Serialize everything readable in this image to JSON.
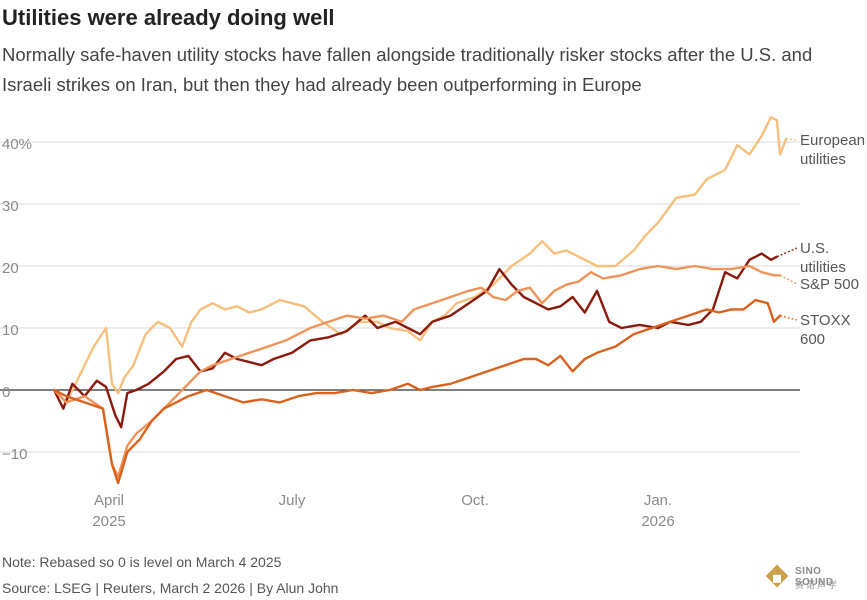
{
  "header": {
    "title": "Utilities were already doing well",
    "subtitle": "Normally safe-haven utility stocks have fallen alongside traditionally risker stocks after the U.S. and Israeli strikes on Iran, but then they had already been outperforming in Europe"
  },
  "footer": {
    "note": "Note: Rebased so 0 is level on March 4 2025",
    "source": "Source: LSEG | Reuters, March 2 2026 | By Alun John"
  },
  "logo": {
    "text": "SINO SOUND",
    "subtext": "赛诺声学"
  },
  "colors": {
    "european_utilities": "#f5c07e",
    "us_utilities": "#8b1a0e",
    "sp500": "#ee935a",
    "stoxx600": "#d9621e",
    "grid": "#d9d9d9",
    "zero_line": "#333333",
    "axis_text": "#8a8a8a"
  },
  "chart_data": {
    "type": "line",
    "title": "Utilities were already doing well",
    "xlabel": "",
    "ylabel": "",
    "x_unit": "months since March 1 2025",
    "xlim": [
      0.05,
      12.25
    ],
    "ylim": [
      -15,
      45
    ],
    "yticks": [
      -10,
      0,
      10,
      20,
      30,
      40
    ],
    "ytick_labels": [
      "−10",
      "0",
      "10",
      "20",
      "30",
      "40%"
    ],
    "xticks": [
      {
        "x": 1,
        "label": "April",
        "year": "2025"
      },
      {
        "x": 4,
        "label": "July",
        "year": ""
      },
      {
        "x": 7,
        "label": "Oct.",
        "year": ""
      },
      {
        "x": 10,
        "label": "Jan.",
        "year": "2026"
      }
    ],
    "series": [
      {
        "name": "European utilities",
        "label_lines": [
          "European",
          "utilities"
        ],
        "color_key": "european_utilities",
        "points": [
          [
            0.1,
            0
          ],
          [
            0.3,
            -2
          ],
          [
            0.55,
            3
          ],
          [
            0.75,
            7
          ],
          [
            0.95,
            10
          ],
          [
            1.05,
            1
          ],
          [
            1.15,
            -0.5
          ],
          [
            1.25,
            2
          ],
          [
            1.4,
            4
          ],
          [
            1.6,
            9
          ],
          [
            1.8,
            11
          ],
          [
            2.0,
            10
          ],
          [
            2.2,
            7
          ],
          [
            2.35,
            11
          ],
          [
            2.5,
            13
          ],
          [
            2.7,
            14
          ],
          [
            2.9,
            13
          ],
          [
            3.1,
            13.5
          ],
          [
            3.3,
            12.5
          ],
          [
            3.5,
            13
          ],
          [
            3.8,
            14.5
          ],
          [
            4.0,
            14
          ],
          [
            4.2,
            13.5
          ],
          [
            4.5,
            11
          ],
          [
            4.8,
            9
          ],
          [
            5.1,
            11
          ],
          [
            5.4,
            11
          ],
          [
            5.6,
            10
          ],
          [
            5.9,
            9.5
          ],
          [
            6.1,
            8
          ],
          [
            6.3,
            11
          ],
          [
            6.5,
            12
          ],
          [
            6.7,
            14
          ],
          [
            7.0,
            15
          ],
          [
            7.3,
            17
          ],
          [
            7.6,
            20
          ],
          [
            7.9,
            22
          ],
          [
            8.1,
            24
          ],
          [
            8.3,
            22
          ],
          [
            8.5,
            22.5
          ],
          [
            8.7,
            21.5
          ],
          [
            9.0,
            20
          ],
          [
            9.3,
            20
          ],
          [
            9.6,
            22.5
          ],
          [
            9.8,
            25
          ],
          [
            10.0,
            27
          ],
          [
            10.3,
            31
          ],
          [
            10.6,
            31.5
          ],
          [
            10.8,
            34
          ],
          [
            11.1,
            35.5
          ],
          [
            11.3,
            39.5
          ],
          [
            11.5,
            38
          ],
          [
            11.7,
            41
          ],
          [
            11.85,
            44
          ],
          [
            11.95,
            43.5
          ],
          [
            12.0,
            38
          ],
          [
            12.1,
            40.5
          ]
        ]
      },
      {
        "name": "U.S. utilities",
        "label_lines": [
          "U.S.",
          "utilities"
        ],
        "color_key": "us_utilities",
        "points": [
          [
            0.1,
            0
          ],
          [
            0.25,
            -3
          ],
          [
            0.4,
            1
          ],
          [
            0.6,
            -1
          ],
          [
            0.8,
            1.5
          ],
          [
            0.95,
            0.5
          ],
          [
            1.1,
            -4
          ],
          [
            1.2,
            -6
          ],
          [
            1.3,
            -0.5
          ],
          [
            1.45,
            0
          ],
          [
            1.65,
            1
          ],
          [
            1.9,
            3
          ],
          [
            2.1,
            5
          ],
          [
            2.3,
            5.5
          ],
          [
            2.5,
            3
          ],
          [
            2.7,
            3.5
          ],
          [
            2.9,
            6
          ],
          [
            3.1,
            5
          ],
          [
            3.3,
            4.5
          ],
          [
            3.5,
            4
          ],
          [
            3.7,
            5
          ],
          [
            4.0,
            6
          ],
          [
            4.3,
            8
          ],
          [
            4.6,
            8.5
          ],
          [
            4.9,
            9.5
          ],
          [
            5.2,
            12
          ],
          [
            5.4,
            10
          ],
          [
            5.7,
            11
          ],
          [
            5.9,
            10
          ],
          [
            6.1,
            9
          ],
          [
            6.3,
            11
          ],
          [
            6.6,
            12
          ],
          [
            6.9,
            14
          ],
          [
            7.2,
            16
          ],
          [
            7.4,
            19.5
          ],
          [
            7.6,
            17
          ],
          [
            7.8,
            15
          ],
          [
            8.0,
            14
          ],
          [
            8.2,
            13
          ],
          [
            8.4,
            13.5
          ],
          [
            8.6,
            15
          ],
          [
            8.8,
            12.5
          ],
          [
            9.0,
            16
          ],
          [
            9.2,
            11
          ],
          [
            9.4,
            10
          ],
          [
            9.7,
            10.5
          ],
          [
            10.0,
            10
          ],
          [
            10.2,
            11
          ],
          [
            10.5,
            10.5
          ],
          [
            10.7,
            11
          ],
          [
            10.9,
            13
          ],
          [
            11.1,
            19
          ],
          [
            11.3,
            18
          ],
          [
            11.5,
            21
          ],
          [
            11.7,
            22
          ],
          [
            11.85,
            21
          ],
          [
            11.95,
            21.5
          ]
        ]
      },
      {
        "name": "S&P 500",
        "label_lines": [
          "S&P 500"
        ],
        "color_key": "sp500",
        "points": [
          [
            0.1,
            0
          ],
          [
            0.3,
            -2
          ],
          [
            0.6,
            -1
          ],
          [
            0.9,
            -3
          ],
          [
            1.05,
            -12
          ],
          [
            1.15,
            -14
          ],
          [
            1.3,
            -9
          ],
          [
            1.45,
            -7
          ],
          [
            1.7,
            -5
          ],
          [
            1.9,
            -3
          ],
          [
            2.1,
            -1
          ],
          [
            2.3,
            1
          ],
          [
            2.5,
            3
          ],
          [
            2.7,
            4
          ],
          [
            3.0,
            5
          ],
          [
            3.3,
            6
          ],
          [
            3.6,
            7
          ],
          [
            3.9,
            8
          ],
          [
            4.1,
            9
          ],
          [
            4.3,
            10
          ],
          [
            4.6,
            11
          ],
          [
            4.9,
            12
          ],
          [
            5.2,
            11.5
          ],
          [
            5.5,
            12
          ],
          [
            5.8,
            11
          ],
          [
            6.0,
            13
          ],
          [
            6.3,
            14
          ],
          [
            6.6,
            15
          ],
          [
            6.9,
            16
          ],
          [
            7.1,
            16.5
          ],
          [
            7.3,
            15
          ],
          [
            7.5,
            14.5
          ],
          [
            7.7,
            16
          ],
          [
            7.9,
            16.5
          ],
          [
            8.1,
            14
          ],
          [
            8.3,
            16
          ],
          [
            8.5,
            17
          ],
          [
            8.7,
            17.5
          ],
          [
            8.9,
            19
          ],
          [
            9.1,
            18
          ],
          [
            9.4,
            18.5
          ],
          [
            9.7,
            19.5
          ],
          [
            10.0,
            20
          ],
          [
            10.3,
            19.5
          ],
          [
            10.6,
            20
          ],
          [
            10.9,
            19.5
          ],
          [
            11.2,
            19.5
          ],
          [
            11.5,
            20
          ],
          [
            11.7,
            19
          ],
          [
            11.9,
            18.5
          ],
          [
            12.0,
            18.5
          ]
        ]
      },
      {
        "name": "STOXX 600",
        "label_lines": [
          "STOXX",
          "600"
        ],
        "color_key": "stoxx600",
        "points": [
          [
            0.1,
            0
          ],
          [
            0.3,
            -1
          ],
          [
            0.6,
            -2
          ],
          [
            0.9,
            -3
          ],
          [
            1.05,
            -12
          ],
          [
            1.15,
            -15
          ],
          [
            1.3,
            -10
          ],
          [
            1.5,
            -8
          ],
          [
            1.7,
            -5
          ],
          [
            1.9,
            -3
          ],
          [
            2.1,
            -2
          ],
          [
            2.3,
            -1
          ],
          [
            2.6,
            0
          ],
          [
            2.9,
            -1
          ],
          [
            3.2,
            -2
          ],
          [
            3.5,
            -1.5
          ],
          [
            3.8,
            -2
          ],
          [
            4.1,
            -1
          ],
          [
            4.4,
            -0.5
          ],
          [
            4.7,
            -0.5
          ],
          [
            5.0,
            0
          ],
          [
            5.3,
            -0.5
          ],
          [
            5.6,
            0
          ],
          [
            5.9,
            1
          ],
          [
            6.1,
            0
          ],
          [
            6.3,
            0.5
          ],
          [
            6.6,
            1
          ],
          [
            6.9,
            2
          ],
          [
            7.2,
            3
          ],
          [
            7.5,
            4
          ],
          [
            7.8,
            5
          ],
          [
            8.0,
            5
          ],
          [
            8.2,
            4
          ],
          [
            8.4,
            5.5
          ],
          [
            8.6,
            3
          ],
          [
            8.8,
            5
          ],
          [
            9.0,
            6
          ],
          [
            9.3,
            7
          ],
          [
            9.6,
            9
          ],
          [
            9.9,
            10
          ],
          [
            10.2,
            11
          ],
          [
            10.5,
            12
          ],
          [
            10.8,
            13
          ],
          [
            11.0,
            12.5
          ],
          [
            11.2,
            13
          ],
          [
            11.4,
            13
          ],
          [
            11.6,
            14.5
          ],
          [
            11.8,
            14
          ],
          [
            11.9,
            11
          ],
          [
            12.0,
            12
          ]
        ]
      }
    ]
  }
}
